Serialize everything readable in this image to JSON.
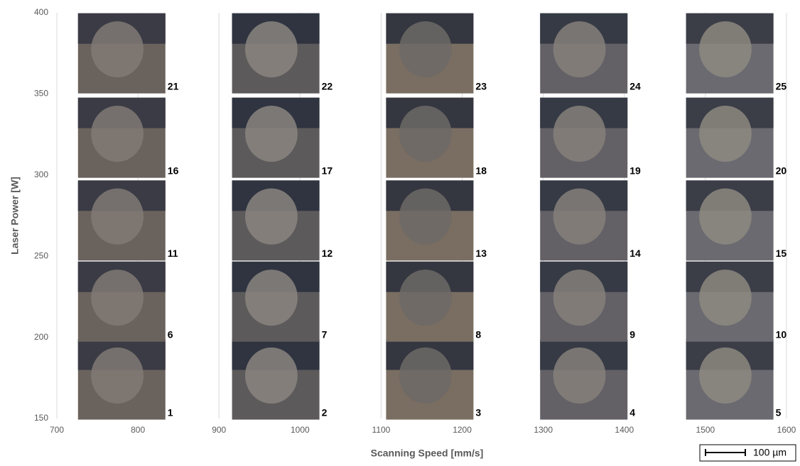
{
  "chart_data": {
    "type": "tiles",
    "x_label": "Scanning Speed [mm/s]",
    "y_label": "Laser Power [W]",
    "xlim": [
      700,
      1600
    ],
    "xticks": [
      700,
      800,
      900,
      1000,
      1100,
      1200,
      1300,
      1400,
      1500,
      1600
    ],
    "ylim": [
      150,
      400
    ],
    "yticks": [
      150,
      200,
      250,
      300,
      350,
      400
    ],
    "grid": true,
    "scale_bar": "100 µm",
    "samples": [
      {
        "label": "1",
        "speed": 780,
        "power": 174
      },
      {
        "label": "2",
        "speed": 970,
        "power": 174
      },
      {
        "label": "3",
        "speed": 1160,
        "power": 174
      },
      {
        "label": "4",
        "speed": 1350,
        "power": 174
      },
      {
        "label": "5",
        "speed": 1530,
        "power": 174
      },
      {
        "label": "6",
        "speed": 780,
        "power": 222
      },
      {
        "label": "7",
        "speed": 970,
        "power": 222
      },
      {
        "label": "8",
        "speed": 1160,
        "power": 222
      },
      {
        "label": "9",
        "speed": 1350,
        "power": 222
      },
      {
        "label": "10",
        "speed": 1530,
        "power": 222
      },
      {
        "label": "11",
        "speed": 780,
        "power": 272
      },
      {
        "label": "12",
        "speed": 970,
        "power": 272
      },
      {
        "label": "13",
        "speed": 1160,
        "power": 272
      },
      {
        "label": "14",
        "speed": 1350,
        "power": 272
      },
      {
        "label": "15",
        "speed": 1530,
        "power": 272
      },
      {
        "label": "16",
        "speed": 780,
        "power": 323
      },
      {
        "label": "17",
        "speed": 970,
        "power": 323
      },
      {
        "label": "18",
        "speed": 1160,
        "power": 323
      },
      {
        "label": "19",
        "speed": 1350,
        "power": 323
      },
      {
        "label": "20",
        "speed": 1530,
        "power": 323
      },
      {
        "label": "21",
        "speed": 780,
        "power": 375
      },
      {
        "label": "22",
        "speed": 970,
        "power": 375
      },
      {
        "label": "23",
        "speed": 1160,
        "power": 375
      },
      {
        "label": "24",
        "speed": 1350,
        "power": 375
      },
      {
        "label": "25",
        "speed": 1530,
        "power": 375
      }
    ]
  }
}
